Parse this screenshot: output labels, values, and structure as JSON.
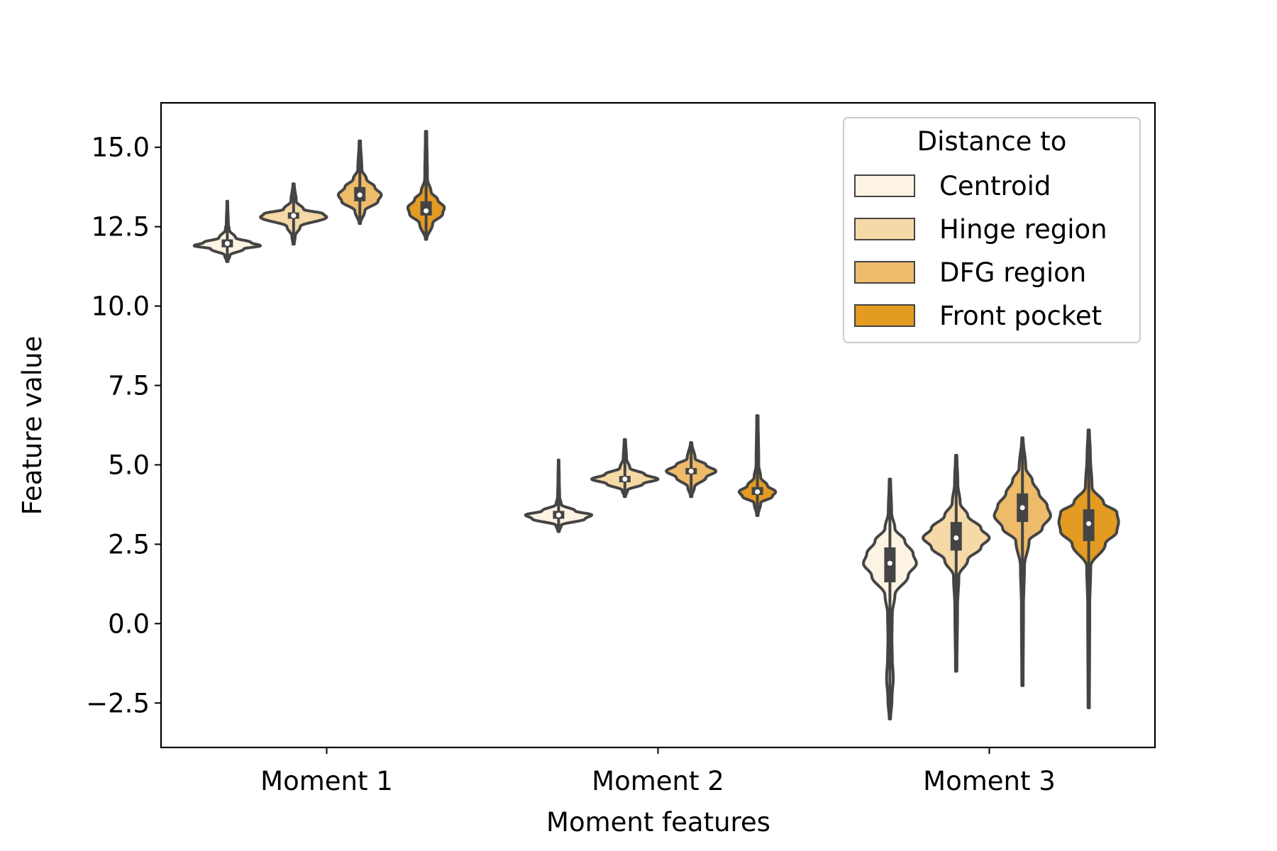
{
  "chart_data": {
    "type": "violin",
    "title": "",
    "xlabel": "Moment features",
    "ylabel": "Feature value",
    "categories": [
      "Moment 1",
      "Moment 2",
      "Moment 3"
    ],
    "ylim": [
      -3.9,
      16.4
    ],
    "yticks": [
      -2.5,
      0.0,
      2.5,
      5.0,
      7.5,
      10.0,
      12.5,
      15.0
    ],
    "ytick_labels": [
      "−2.5",
      "0.0",
      "2.5",
      "5.0",
      "7.5",
      "10.0",
      "12.5",
      "15.0"
    ],
    "grid": false,
    "legend": {
      "title": "Distance to",
      "placement": "top-right"
    },
    "series": [
      {
        "name": "Centroid",
        "color": "#fdf3e3",
        "groups": [
          {
            "category": "Moment 1",
            "min": 11.4,
            "q1": 11.85,
            "median": 11.97,
            "q3": 12.1,
            "max": 13.3,
            "profile": [
              [
                11.4,
                0.02
              ],
              [
                11.6,
                0.08
              ],
              [
                11.8,
                0.5
              ],
              [
                11.9,
                1.0
              ],
              [
                12.0,
                0.72
              ],
              [
                12.15,
                0.25
              ],
              [
                12.4,
                0.06
              ],
              [
                12.6,
                0.03
              ],
              [
                13.3,
                0.01
              ]
            ]
          },
          {
            "category": "Moment 2",
            "min": 2.9,
            "q1": 3.3,
            "median": 3.42,
            "q3": 3.55,
            "max": 5.15,
            "profile": [
              [
                2.9,
                0.02
              ],
              [
                3.1,
                0.08
              ],
              [
                3.3,
                0.8
              ],
              [
                3.42,
                1.0
              ],
              [
                3.55,
                0.5
              ],
              [
                3.75,
                0.08
              ],
              [
                4.0,
                0.03
              ],
              [
                4.5,
                0.02
              ],
              [
                5.15,
                0.01
              ]
            ]
          },
          {
            "category": "Moment 3",
            "min": -3.0,
            "q1": 1.3,
            "median": 1.9,
            "q3": 2.4,
            "max": 4.55,
            "profile": [
              [
                -3.0,
                0.02
              ],
              [
                -2.4,
                0.06
              ],
              [
                -1.7,
                0.1
              ],
              [
                -1.1,
                0.07
              ],
              [
                -0.5,
                0.06
              ],
              [
                0.3,
                0.07
              ],
              [
                0.9,
                0.15
              ],
              [
                1.5,
                0.55
              ],
              [
                1.9,
                0.8
              ],
              [
                2.2,
                0.7
              ],
              [
                2.6,
                0.45
              ],
              [
                3.0,
                0.15
              ],
              [
                3.5,
                0.05
              ],
              [
                4.55,
                0.02
              ]
            ]
          }
        ]
      },
      {
        "name": "Hinge region",
        "color": "#f5d9a6",
        "groups": [
          {
            "category": "Moment 1",
            "min": 11.95,
            "q1": 12.75,
            "median": 12.85,
            "q3": 12.95,
            "max": 13.85,
            "profile": [
              [
                11.95,
                0.02
              ],
              [
                12.2,
                0.05
              ],
              [
                12.5,
                0.2
              ],
              [
                12.8,
                1.0
              ],
              [
                12.9,
                0.9
              ],
              [
                13.05,
                0.3
              ],
              [
                13.3,
                0.08
              ],
              [
                13.85,
                0.02
              ]
            ]
          },
          {
            "category": "Moment 2",
            "min": 4.0,
            "q1": 4.45,
            "median": 4.55,
            "q3": 4.65,
            "max": 5.8,
            "profile": [
              [
                4.0,
                0.02
              ],
              [
                4.2,
                0.08
              ],
              [
                4.4,
                0.55
              ],
              [
                4.55,
                1.0
              ],
              [
                4.7,
                0.6
              ],
              [
                4.9,
                0.15
              ],
              [
                5.2,
                0.05
              ],
              [
                5.8,
                0.02
              ]
            ]
          },
          {
            "category": "Moment 3",
            "min": -1.5,
            "q1": 2.3,
            "median": 2.7,
            "q3": 3.2,
            "max": 5.3,
            "profile": [
              [
                -1.5,
                0.02
              ],
              [
                0.5,
                0.04
              ],
              [
                1.5,
                0.08
              ],
              [
                2.0,
                0.35
              ],
              [
                2.4,
                0.75
              ],
              [
                2.7,
                1.0
              ],
              [
                3.0,
                0.75
              ],
              [
                3.4,
                0.35
              ],
              [
                3.8,
                0.12
              ],
              [
                4.4,
                0.05
              ],
              [
                5.3,
                0.02
              ]
            ]
          }
        ]
      },
      {
        "name": "DFG region",
        "color": "#edbb6a",
        "groups": [
          {
            "category": "Moment 1",
            "min": 12.6,
            "q1": 13.3,
            "median": 13.5,
            "q3": 13.75,
            "max": 15.2,
            "profile": [
              [
                12.6,
                0.02
              ],
              [
                13.0,
                0.15
              ],
              [
                13.3,
                0.55
              ],
              [
                13.5,
                0.65
              ],
              [
                13.75,
                0.45
              ],
              [
                14.0,
                0.2
              ],
              [
                14.3,
                0.06
              ],
              [
                15.2,
                0.02
              ]
            ]
          },
          {
            "category": "Moment 2",
            "min": 4.0,
            "q1": 4.7,
            "median": 4.8,
            "q3": 4.9,
            "max": 5.7,
            "profile": [
              [
                4.0,
                0.02
              ],
              [
                4.3,
                0.1
              ],
              [
                4.6,
                0.45
              ],
              [
                4.8,
                0.75
              ],
              [
                5.0,
                0.45
              ],
              [
                5.2,
                0.12
              ],
              [
                5.7,
                0.02
              ]
            ]
          },
          {
            "category": "Moment 3",
            "min": -1.95,
            "q1": 3.2,
            "median": 3.65,
            "q3": 4.1,
            "max": 5.85,
            "profile": [
              [
                -1.95,
                0.02
              ],
              [
                0.5,
                0.03
              ],
              [
                1.8,
                0.06
              ],
              [
                2.6,
                0.2
              ],
              [
                3.0,
                0.6
              ],
              [
                3.4,
                0.85
              ],
              [
                3.7,
                0.75
              ],
              [
                4.1,
                0.5
              ],
              [
                4.5,
                0.3
              ],
              [
                4.9,
                0.1
              ],
              [
                5.85,
                0.02
              ]
            ]
          }
        ]
      },
      {
        "name": "Front pocket",
        "color": "#e39b22",
        "groups": [
          {
            "category": "Moment 1",
            "min": 12.1,
            "q1": 12.85,
            "median": 13.0,
            "q3": 13.3,
            "max": 15.5,
            "profile": [
              [
                12.1,
                0.02
              ],
              [
                12.6,
                0.2
              ],
              [
                12.9,
                0.5
              ],
              [
                13.1,
                0.55
              ],
              [
                13.35,
                0.35
              ],
              [
                13.6,
                0.15
              ],
              [
                14.0,
                0.04
              ],
              [
                15.5,
                0.02
              ]
            ]
          },
          {
            "category": "Moment 2",
            "min": 3.4,
            "q1": 4.05,
            "median": 4.15,
            "q3": 4.3,
            "max": 6.55,
            "profile": [
              [
                3.4,
                0.02
              ],
              [
                3.8,
                0.1
              ],
              [
                4.0,
                0.45
              ],
              [
                4.15,
                0.55
              ],
              [
                4.35,
                0.3
              ],
              [
                4.6,
                0.1
              ],
              [
                5.0,
                0.04
              ],
              [
                6.55,
                0.02
              ]
            ]
          },
          {
            "category": "Moment 3",
            "min": -2.65,
            "q1": 2.6,
            "median": 3.15,
            "q3": 3.6,
            "max": 6.1,
            "profile": [
              [
                -2.65,
                0.02
              ],
              [
                0.5,
                0.03
              ],
              [
                1.8,
                0.06
              ],
              [
                2.5,
                0.5
              ],
              [
                2.9,
                0.85
              ],
              [
                3.2,
                0.9
              ],
              [
                3.5,
                0.85
              ],
              [
                3.8,
                0.45
              ],
              [
                4.3,
                0.1
              ],
              [
                5.3,
                0.05
              ],
              [
                6.1,
                0.02
              ]
            ]
          }
        ]
      }
    ]
  }
}
